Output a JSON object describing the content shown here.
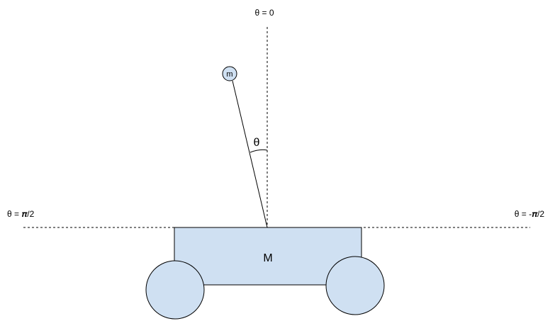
{
  "diagram": {
    "labels": {
      "theta_zero": "θ = 0",
      "theta_left": "θ = 𝝅/2",
      "theta_right": "θ = -𝝅/2",
      "theta_angle": "θ",
      "bob_mass": "m",
      "cart_mass": "M"
    },
    "colors": {
      "fill": "#cfe0f2",
      "stroke": "#000000",
      "background": "#ffffff"
    }
  }
}
